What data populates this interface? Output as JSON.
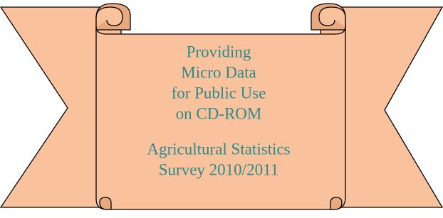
{
  "banner": {
    "heading_lines": [
      "Providing",
      "Micro Data",
      "for Public Use",
      "on CD-ROM"
    ],
    "survey_lines": [
      "Agricultural Statistics",
      "Survey 2010/2011"
    ]
  }
}
